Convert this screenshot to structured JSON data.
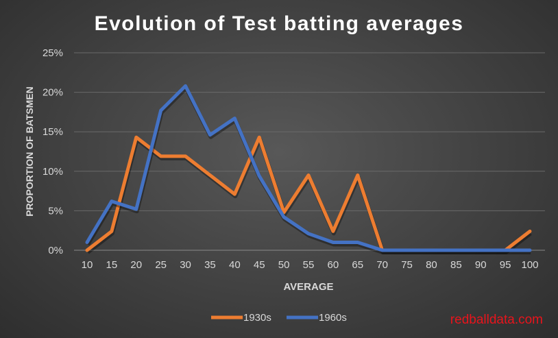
{
  "chart_data": {
    "type": "line",
    "title": "Evolution of Test batting averages",
    "xlabel": "AVERAGE",
    "ylabel": "PROPORTION OF BATSMEN",
    "x": [
      10,
      15,
      20,
      25,
      30,
      35,
      40,
      45,
      50,
      55,
      60,
      65,
      70,
      75,
      80,
      85,
      90,
      95,
      100
    ],
    "ylim": [
      0,
      25
    ],
    "yticks": [
      "0%",
      "5%",
      "10%",
      "15%",
      "20%",
      "25%"
    ],
    "grid": true,
    "legend_position": "bottom",
    "series": [
      {
        "name": "1930s",
        "color": "#ED7D31",
        "values": [
          0,
          2.4,
          14.3,
          11.9,
          11.9,
          9.5,
          7.1,
          14.3,
          4.8,
          9.5,
          2.4,
          9.5,
          0,
          0,
          0,
          0,
          0,
          0,
          2.4
        ]
      },
      {
        "name": "1960s",
        "color": "#4472C4",
        "values": [
          1.0,
          6.2,
          5.2,
          17.7,
          20.8,
          14.6,
          16.7,
          9.4,
          4.2,
          2.1,
          1.0,
          1.0,
          0,
          0,
          0,
          0,
          0,
          0,
          0
        ]
      }
    ]
  },
  "watermark": "redballdata.com"
}
